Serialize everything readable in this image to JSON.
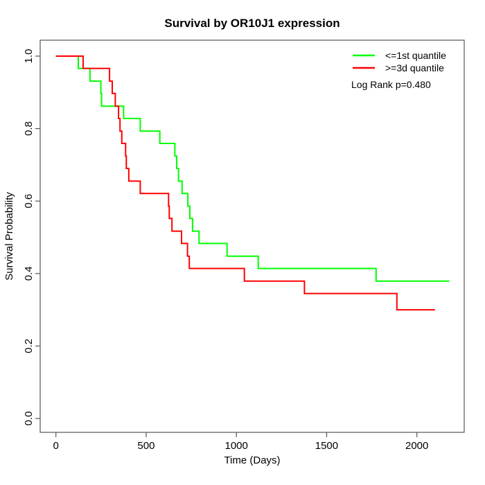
{
  "chart_data": {
    "type": "line",
    "subtype": "kaplan-meier-step",
    "title": "Survival by OR10J1 expression",
    "xlabel": "Time (Days)",
    "ylabel": "Survival Probability",
    "xlim": [
      -90,
      2265
    ],
    "ylim": [
      0.0,
      1.0
    ],
    "xticks": {
      "values": [
        0,
        500,
        1000,
        1500,
        2000
      ],
      "labels": [
        "0",
        "500",
        "1000",
        "1500",
        "2000"
      ]
    },
    "yticks": {
      "values": [
        0.0,
        0.2,
        0.4,
        0.6,
        0.8,
        1.0
      ],
      "labels": [
        "0.0",
        "0.2",
        "0.4",
        "0.6",
        "0.8",
        "1.0"
      ]
    },
    "grid": false,
    "legend_position": "top-right",
    "annotation": "Log Rank p=0.480",
    "colors": {
      "group1": "#00FF00",
      "group2": "#FF0000",
      "axis": "#444444",
      "text": "#000000"
    },
    "series": [
      {
        "name": "<=1st quantile",
        "color": "#00FF00",
        "end_day": 2180,
        "points": [
          [
            0,
            1.0
          ],
          [
            124,
            0.966
          ],
          [
            189,
            0.931
          ],
          [
            249,
            0.897
          ],
          [
            253,
            0.862
          ],
          [
            375,
            0.828
          ],
          [
            467,
            0.793
          ],
          [
            576,
            0.759
          ],
          [
            659,
            0.724
          ],
          [
            669,
            0.69
          ],
          [
            679,
            0.655
          ],
          [
            699,
            0.621
          ],
          [
            731,
            0.586
          ],
          [
            742,
            0.552
          ],
          [
            757,
            0.517
          ],
          [
            793,
            0.483
          ],
          [
            948,
            0.448
          ],
          [
            1121,
            0.414
          ],
          [
            1774,
            0.379
          ]
        ]
      },
      {
        "name": ">=3d quantile",
        "color": "#FF0000",
        "end_day": 2100,
        "points": [
          [
            0,
            1.0
          ],
          [
            151,
            0.966
          ],
          [
            297,
            0.931
          ],
          [
            312,
            0.897
          ],
          [
            329,
            0.862
          ],
          [
            347,
            0.828
          ],
          [
            355,
            0.793
          ],
          [
            365,
            0.759
          ],
          [
            386,
            0.724
          ],
          [
            390,
            0.69
          ],
          [
            404,
            0.655
          ],
          [
            467,
            0.621
          ],
          [
            624,
            0.586
          ],
          [
            628,
            0.552
          ],
          [
            643,
            0.517
          ],
          [
            696,
            0.483
          ],
          [
            729,
            0.448
          ],
          [
            739,
            0.414
          ],
          [
            1044,
            0.379
          ],
          [
            1377,
            0.345
          ],
          [
            1889,
            0.3
          ]
        ]
      }
    ]
  }
}
